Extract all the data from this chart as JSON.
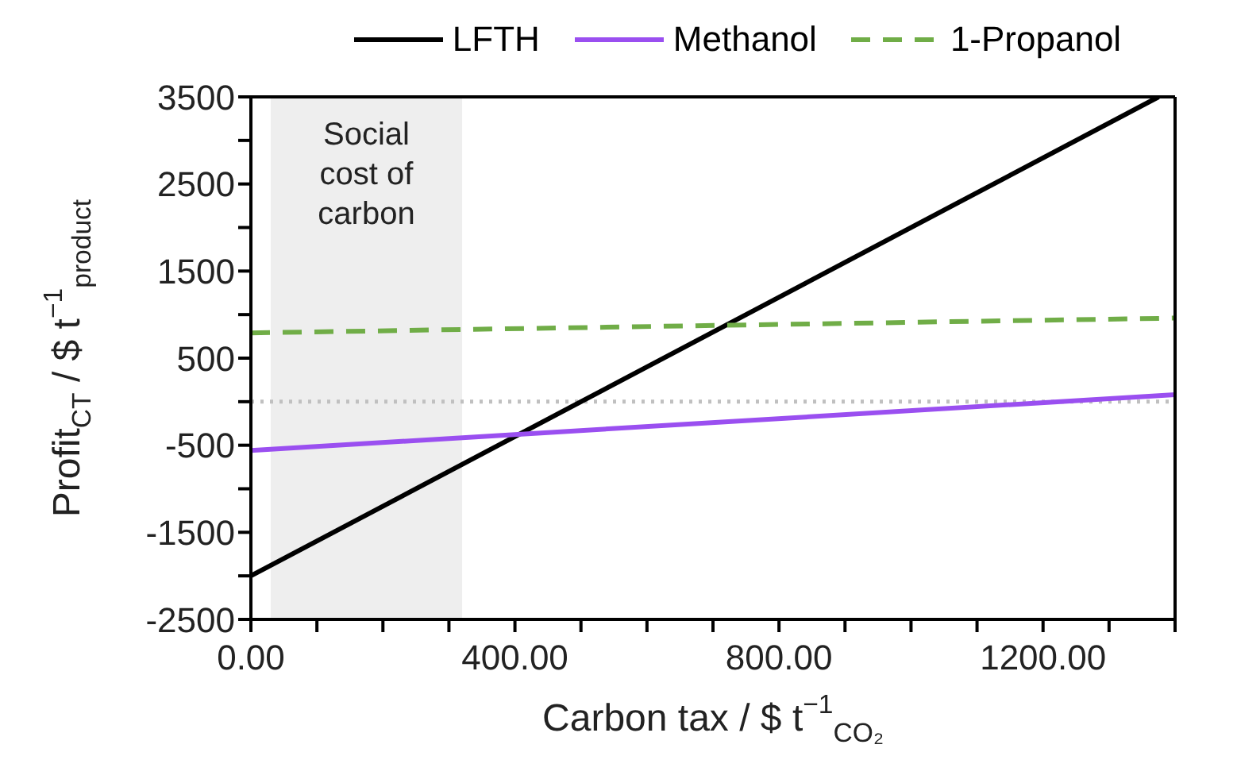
{
  "chart_data": {
    "type": "line",
    "xlabel": "Carbon tax / $ t$^{−1}$$_{CO₂}$",
    "ylabel": "Profit$_{CT}$ / $ t$^{−1}$$_{product}$",
    "series": [
      {
        "name": "LFTH",
        "color": "#000000",
        "x": [
          0,
          1375
        ],
        "values": [
          -2000,
          3500
        ],
        "line_style": "solid"
      },
      {
        "name": "Methanol",
        "color": "#9a4ff0",
        "x": [
          0,
          1400
        ],
        "values": [
          -560,
          80
        ],
        "line_style": "solid"
      },
      {
        "name": "1-Propanol",
        "color": "#70ad47",
        "x": [
          0,
          1400
        ],
        "values": [
          790,
          960
        ],
        "line_style": "dashed"
      }
    ],
    "xlim": [
      0,
      1400
    ],
    "xticks": [
      {
        "value": 0,
        "label": "0.00"
      },
      {
        "value": 100,
        "label": null
      },
      {
        "value": 200,
        "label": null
      },
      {
        "value": 300,
        "label": null
      },
      {
        "value": 400,
        "label": "400.00"
      },
      {
        "value": 500,
        "label": null
      },
      {
        "value": 600,
        "label": null
      },
      {
        "value": 700,
        "label": null
      },
      {
        "value": 800,
        "label": "800.00"
      },
      {
        "value": 900,
        "label": null
      },
      {
        "value": 1000,
        "label": null
      },
      {
        "value": 1100,
        "label": null
      },
      {
        "value": 1200,
        "label": "1200.00"
      },
      {
        "value": 1300,
        "label": null
      },
      {
        "value": 1400,
        "label": null
      }
    ],
    "ylim": [
      -2500,
      3500
    ],
    "yticks": [
      -2500,
      {
        "value": -2000,
        "label": null
      },
      -1500,
      {
        "value": -1000,
        "label": null
      },
      -500,
      {
        "value": 0,
        "label": null
      },
      500,
      {
        "value": 1000,
        "label": null
      },
      1500,
      {
        "value": 2000,
        "label": null
      },
      2500,
      {
        "value": 3000,
        "label": null
      },
      3500
    ],
    "ref_lines": [
      {
        "axis": "y",
        "value": 0,
        "color": "#c0c0c0",
        "line_style": "dotted"
      }
    ],
    "bands": [
      {
        "axis": "x",
        "from": 30,
        "to": 320,
        "label": "Social cost of carbon",
        "color": "#eeeeee"
      }
    ],
    "legend": "top",
    "marker": "none"
  }
}
